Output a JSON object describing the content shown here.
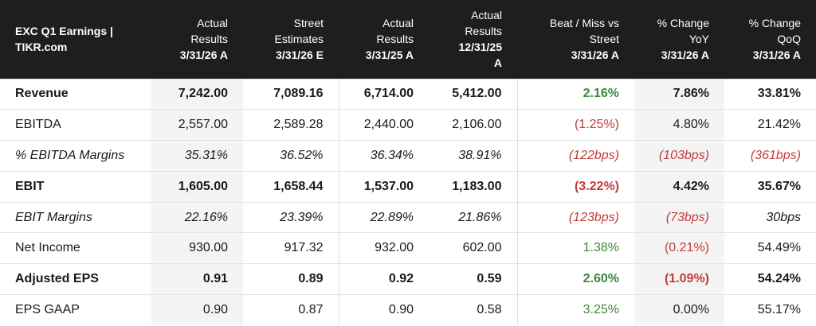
{
  "header": {
    "title_line1": "EXC Q1 Earnings |",
    "title_line2": "TIKR.com",
    "columns": [
      {
        "label1": "Actual",
        "label2": "Results",
        "date": "3/31/26 A",
        "date2": ""
      },
      {
        "label1": "Street",
        "label2": "Estimates",
        "date": "3/31/26 E",
        "date2": ""
      },
      {
        "label1": "Actual",
        "label2": "Results",
        "date": "3/31/25 A",
        "date2": ""
      },
      {
        "label1": "Actual",
        "label2": "Results",
        "date": "12/31/25",
        "date2": "A"
      },
      {
        "label1": "Beat / Miss vs",
        "label2": "Street",
        "date": "3/31/26 A",
        "date2": ""
      },
      {
        "label1": "% Change",
        "label2": "YoY",
        "date": "3/31/26 A",
        "date2": ""
      },
      {
        "label1": "% Change",
        "label2": "QoQ",
        "date": "3/31/26 A",
        "date2": ""
      }
    ]
  },
  "rows": [
    {
      "label": "Revenue",
      "style": "bold",
      "values": [
        "7,242.00",
        "7,089.16",
        "6,714.00",
        "5,412.00"
      ],
      "beat": "2.16%",
      "yoy": "7.86%",
      "qoq": "33.81%",
      "beat_color": "pos",
      "yoy_color": "neu",
      "qoq_color": "neu"
    },
    {
      "label": "EBITDA",
      "style": "normal",
      "values": [
        "2,557.00",
        "2,589.28",
        "2,440.00",
        "2,106.00"
      ],
      "beat": "(1.25%)",
      "yoy": "4.80%",
      "qoq": "21.42%",
      "beat_color": "neg",
      "yoy_color": "neu",
      "qoq_color": "neu"
    },
    {
      "label": "% EBITDA Margins",
      "style": "italic",
      "values": [
        "35.31%",
        "36.52%",
        "36.34%",
        "38.91%"
      ],
      "beat": "(122bps)",
      "yoy": "(103bps)",
      "qoq": "(361bps)",
      "beat_color": "neg",
      "yoy_color": "neg",
      "qoq_color": "neg"
    },
    {
      "label": "EBIT",
      "style": "bold",
      "values": [
        "1,605.00",
        "1,658.44",
        "1,537.00",
        "1,183.00"
      ],
      "beat": "(3.22%)",
      "yoy": "4.42%",
      "qoq": "35.67%",
      "beat_color": "neg",
      "yoy_color": "neu",
      "qoq_color": "neu"
    },
    {
      "label": "EBIT Margins",
      "style": "italic",
      "values": [
        "22.16%",
        "23.39%",
        "22.89%",
        "21.86%"
      ],
      "beat": "(123bps)",
      "yoy": "(73bps)",
      "qoq": "30bps",
      "beat_color": "neg",
      "yoy_color": "neg",
      "qoq_color": "neu"
    },
    {
      "label": "Net Income",
      "style": "normal",
      "values": [
        "930.00",
        "917.32",
        "932.00",
        "602.00"
      ],
      "beat": "1.38%",
      "yoy": "(0.21%)",
      "qoq": "54.49%",
      "beat_color": "pos",
      "yoy_color": "neg",
      "qoq_color": "neu"
    },
    {
      "label": "Adjusted EPS",
      "style": "bold",
      "values": [
        "0.91",
        "0.89",
        "0.92",
        "0.59"
      ],
      "beat": "2.60%",
      "yoy": "(1.09%)",
      "qoq": "54.24%",
      "beat_color": "pos",
      "yoy_color": "neg",
      "qoq_color": "neu"
    },
    {
      "label": "EPS GAAP",
      "style": "normal",
      "values": [
        "0.90",
        "0.87",
        "0.90",
        "0.58"
      ],
      "beat": "3.25%",
      "yoy": "0.00%",
      "qoq": "55.17%",
      "beat_color": "pos",
      "yoy_color": "neu",
      "qoq_color": "neu"
    }
  ],
  "colors": {
    "header_bg": "#1e1e1e",
    "positive": "#3a8a3a",
    "negative": "#c23b3b",
    "shade": "#f4f4f4"
  }
}
